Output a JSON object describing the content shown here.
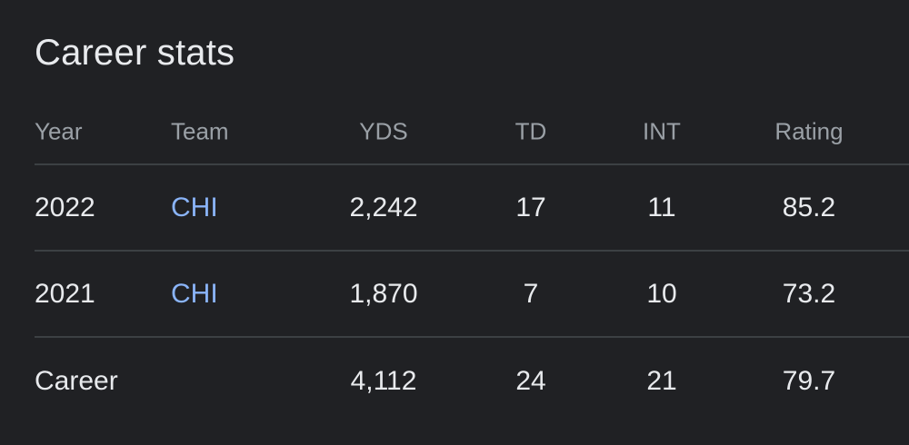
{
  "title": "Career stats",
  "columns": {
    "year": "Year",
    "team": "Team",
    "yds": "YDS",
    "td": "TD",
    "int": "INT",
    "rating": "Rating"
  },
  "rows": [
    {
      "year": "2022",
      "team": "CHI",
      "yds": "2,242",
      "td": "17",
      "int": "11",
      "rating": "85.2"
    },
    {
      "year": "2021",
      "team": "CHI",
      "yds": "1,870",
      "td": "7",
      "int": "10",
      "rating": "73.2"
    },
    {
      "year": "Career",
      "team": "",
      "yds": "4,112",
      "td": "24",
      "int": "21",
      "rating": "79.7"
    }
  ],
  "colors": {
    "background": "#202124",
    "text": "#e8eaed",
    "header_text": "#9aa0a6",
    "link": "#8ab4f8",
    "divider": "#3c4043"
  }
}
